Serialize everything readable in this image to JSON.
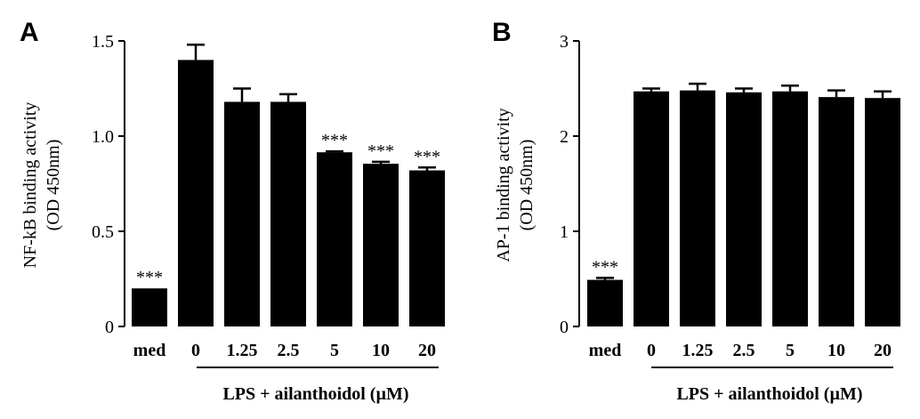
{
  "chart_data": [
    {
      "type": "bar",
      "panel": "A",
      "ylabel_line1": "NF-kB binding activity",
      "ylabel_line2": "(OD 450nm)",
      "xgroup_label": "LPS + ailanthoidol (µM)",
      "ylim": [
        0,
        1.5
      ],
      "yticks": [
        "0",
        "0.5",
        "1.0",
        "1.5"
      ],
      "categories": [
        "med",
        "0",
        "1.25",
        "2.5",
        "5",
        "10",
        "20"
      ],
      "values": [
        0.2,
        1.4,
        1.18,
        1.18,
        0.915,
        0.855,
        0.82
      ],
      "errors": [
        0.0,
        0.08,
        0.07,
        0.04,
        0.005,
        0.01,
        0.015
      ],
      "significance": [
        "***",
        "",
        "",
        "",
        "***",
        "***",
        "***"
      ]
    },
    {
      "type": "bar",
      "panel": "B",
      "ylabel_line1": "AP-1 binding activity",
      "ylabel_line2": "(OD 450nm)",
      "xgroup_label": "LPS + ailanthoidol (µM)",
      "ylim": [
        0,
        3
      ],
      "yticks": [
        "0",
        "1",
        "2",
        "3"
      ],
      "categories": [
        "med",
        "0",
        "1.25",
        "2.5",
        "5",
        "10",
        "20"
      ],
      "values": [
        0.49,
        2.47,
        2.48,
        2.46,
        2.47,
        2.41,
        2.4
      ],
      "errors": [
        0.02,
        0.03,
        0.07,
        0.04,
        0.06,
        0.07,
        0.07
      ],
      "significance": [
        "***",
        "",
        "",
        "",
        "",
        "",
        ""
      ]
    }
  ]
}
